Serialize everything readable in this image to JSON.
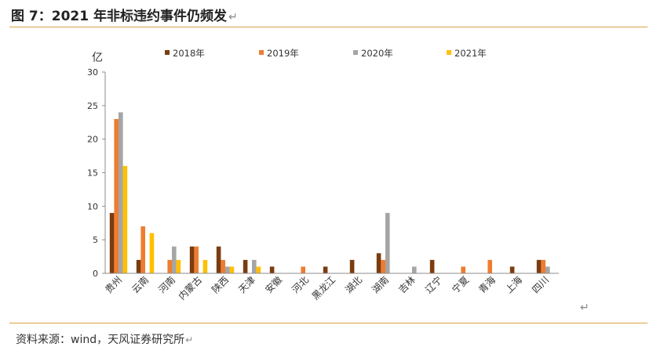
{
  "figure": {
    "title": "图 7：2021 年非标违约事件仍频发",
    "source": "资料来源：wind，天风证券研究所",
    "return_mark": "↵"
  },
  "colors": {
    "accent_rule": "#d9a441",
    "series": [
      "#7b3c0f",
      "#ed7d31",
      "#a5a5a5",
      "#ffc000"
    ]
  },
  "chart_data": {
    "type": "bar",
    "title": "",
    "xlabel": "",
    "ylabel": "亿",
    "ylim": [
      0,
      30
    ],
    "yticks": [
      0,
      5,
      10,
      15,
      20,
      25,
      30
    ],
    "grid": false,
    "legend_position": "top",
    "categories": [
      "贵州",
      "云南",
      "河南",
      "内蒙古",
      "陕西",
      "天津",
      "安徽",
      "河北",
      "黑龙江",
      "湖北",
      "湖南",
      "吉林",
      "辽宁",
      "宁夏",
      "青海",
      "上海",
      "四川"
    ],
    "series": [
      {
        "name": "2018年",
        "values": [
          9,
          2,
          0,
          4,
          4,
          2,
          1,
          0,
          1,
          2,
          3,
          0,
          2,
          0,
          0,
          1,
          2
        ]
      },
      {
        "name": "2019年",
        "values": [
          23,
          7,
          2,
          4,
          2,
          0,
          0,
          1,
          0,
          0,
          2,
          0,
          0,
          1,
          2,
          0,
          2
        ]
      },
      {
        "name": "2020年",
        "values": [
          24,
          0,
          4,
          0,
          1,
          2,
          0,
          0,
          0,
          0,
          9,
          1,
          0,
          0,
          0,
          0,
          1
        ]
      },
      {
        "name": "2021年",
        "values": [
          16,
          6,
          2,
          2,
          1,
          1,
          0,
          0,
          0,
          0,
          0,
          0,
          0,
          0,
          0,
          0,
          0
        ]
      }
    ]
  }
}
